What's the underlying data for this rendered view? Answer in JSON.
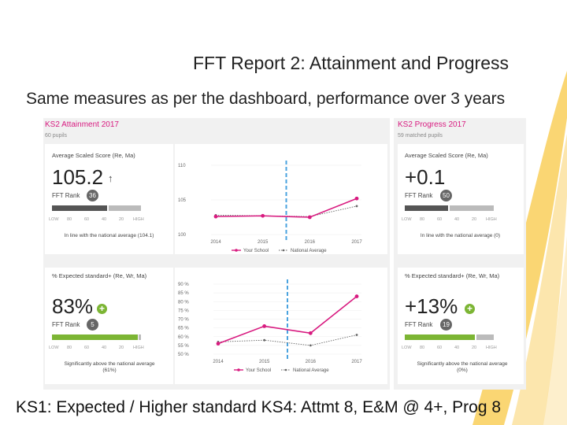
{
  "slide": {
    "title": "FFT Report 2: Attainment and Progress",
    "subtitle": "Same measures as per the dashboard, performance over 3 years",
    "footer": "KS1: Expected / Higher standard   KS4: Attmt 8, E&M @ 4+, Prog 8"
  },
  "attainment": {
    "heading": "KS2 Attainment 2017",
    "pupils": "60 pupils",
    "scaled": {
      "label": "Average Scaled Score (Re, Ma)",
      "value": "105.2",
      "rank_label": "FFT Rank",
      "rank": "36",
      "scale": [
        "LOW",
        "80",
        "60",
        "40",
        "20",
        "HIGH"
      ],
      "note": "In line with the national average (104.1)"
    },
    "expected": {
      "label": "% Expected standard+ (Re, Wr, Ma)",
      "value": "83%",
      "rank_label": "FFT Rank",
      "rank": "5",
      "scale": [
        "LOW",
        "80",
        "60",
        "40",
        "20",
        "HIGH"
      ],
      "note": "Significantly above the national average (61%)"
    }
  },
  "progress": {
    "heading": "KS2 Progress 2017",
    "pupils": "59 matched pupils",
    "scaled": {
      "label": "Average Scaled Score (Re, Ma)",
      "value": "+0.1",
      "rank_label": "FFT Rank",
      "rank": "50",
      "scale": [
        "LOW",
        "80",
        "60",
        "40",
        "20",
        "HIGH"
      ],
      "note": "In line with the national average (0)"
    },
    "expected": {
      "label": "% Expected standard+ (Re, Wr, Ma)",
      "value": "+13%",
      "rank_label": "FFT Rank",
      "rank": "19",
      "scale": [
        "LOW",
        "80",
        "60",
        "40",
        "20",
        "HIGH"
      ],
      "note": "Significantly above the national average (0%)"
    }
  },
  "colors": {
    "accent": "#d81b80",
    "positive": "#7cb534",
    "neutral": "#666666",
    "national": "#666666",
    "swoosh": "#f5b400"
  },
  "chart_data": [
    {
      "type": "line",
      "x": [
        "2014",
        "2015",
        "2016",
        "2017"
      ],
      "ylim": [
        100,
        110
      ],
      "yticks": [
        "110",
        "105",
        "100"
      ],
      "series": [
        {
          "name": "Your School",
          "values": [
            102.6,
            102.7,
            102.5,
            105.2
          ]
        },
        {
          "name": "National Average",
          "values": [
            102.8,
            102.7,
            102.6,
            104.1
          ]
        }
      ]
    },
    {
      "type": "line",
      "x": [
        "2014",
        "2015",
        "2016",
        "2017"
      ],
      "ylim": [
        50,
        90
      ],
      "yticks": [
        "90 %",
        "85 %",
        "80 %",
        "75 %",
        "70 %",
        "65 %",
        "60 %",
        "55 %",
        "50 %"
      ],
      "series": [
        {
          "name": "Your School",
          "values": [
            56,
            66,
            62,
            83
          ]
        },
        {
          "name": "National Average",
          "values": [
            57,
            58,
            55,
            61
          ]
        }
      ]
    }
  ]
}
